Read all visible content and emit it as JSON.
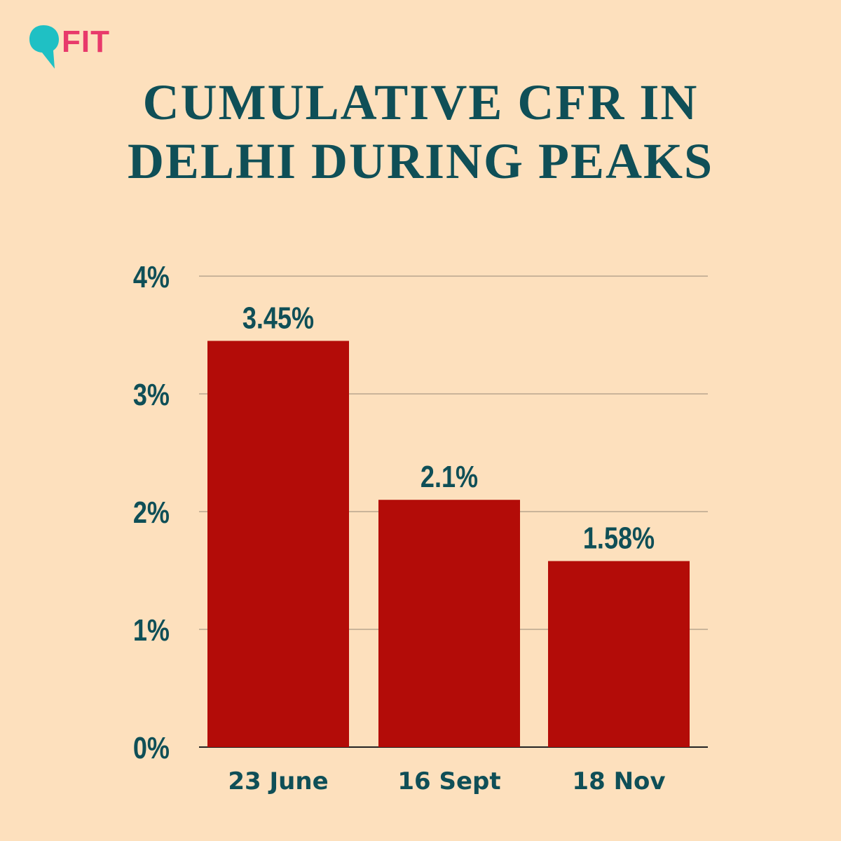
{
  "brand": {
    "name": "FIT",
    "icon": "speech-bubble-icon",
    "icon_color": "#1fc0c4",
    "text_color": "#e83a6b"
  },
  "colors": {
    "background": "#fde0bd",
    "bar": "#b30c08",
    "text": "#0f4f57",
    "grid": "#b9a58e"
  },
  "chart_data": {
    "type": "bar",
    "title": "CUMULATIVE CFR IN DELHI DURING PEAKS",
    "title_lines": [
      "CUMULATIVE CFR IN",
      "DELHI DURING PEAKS"
    ],
    "categories": [
      "23 June",
      "16 Sept",
      "18 Nov"
    ],
    "values": [
      3.45,
      2.1,
      1.58
    ],
    "value_labels": [
      "3.45%",
      "2.1%",
      "1.58%"
    ],
    "yticks": [
      0,
      1,
      2,
      3,
      4
    ],
    "ytick_labels": [
      "0%",
      "1%",
      "2%",
      "3%",
      "4%"
    ],
    "ylim": [
      0,
      4
    ],
    "xlabel": "",
    "ylabel": "",
    "grid": true,
    "legend": "none"
  }
}
